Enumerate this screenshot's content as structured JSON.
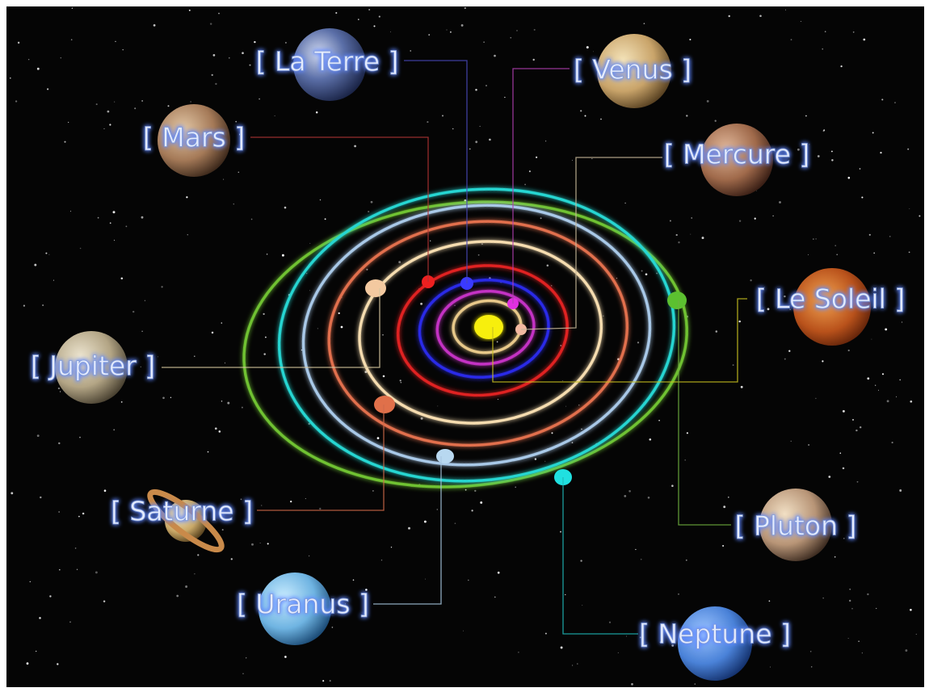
{
  "planets": [
    {
      "label": "[ La Terre ]"
    },
    {
      "label": "[ Venus ]"
    },
    {
      "label": "[ Mars ]"
    },
    {
      "label": "[ Mercure ]"
    },
    {
      "label": "[ Le Soleil ]"
    },
    {
      "label": "[ Jupiter ]"
    },
    {
      "label": "[ Saturne ]"
    },
    {
      "label": "[ Pluton ]"
    },
    {
      "label": "[ Uranus ]"
    },
    {
      "label": "[ Neptune ]"
    }
  ]
}
